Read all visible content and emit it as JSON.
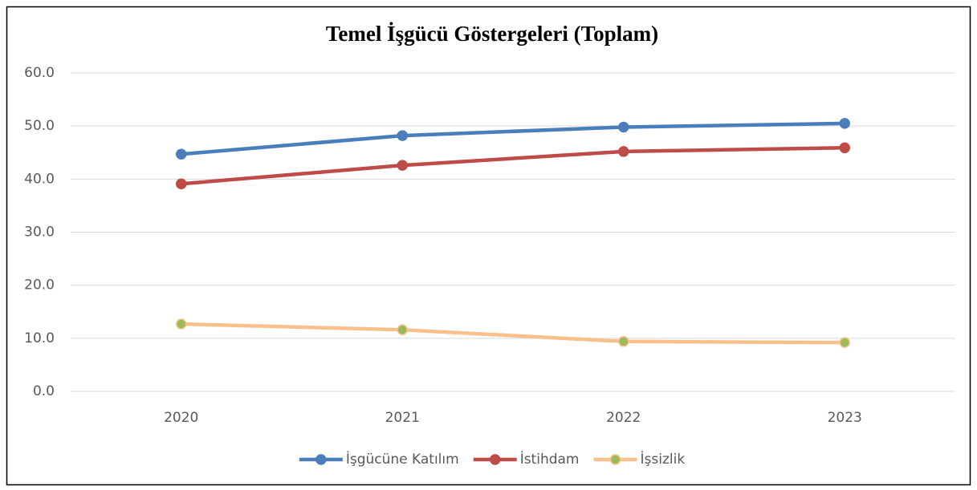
{
  "chart_data": {
    "type": "line",
    "title": "Temel İşgücü Göstergeleri (Toplam)",
    "categories": [
      "2020",
      "2021",
      "2022",
      "2023"
    ],
    "series": [
      {
        "name": "İşgücüne Katılım",
        "color": "#4a7ebb",
        "values": [
          44.7,
          48.2,
          49.8,
          50.5
        ]
      },
      {
        "name": "İstihdam",
        "color": "#be4b48",
        "values": [
          39.1,
          42.6,
          45.2,
          45.9
        ]
      },
      {
        "name": "İşsizlik",
        "color": "#f9c08c",
        "marker_color": "#9bbb59",
        "values": [
          12.7,
          11.6,
          9.4,
          9.2
        ]
      }
    ],
    "ylim": [
      0,
      60
    ],
    "yticks": [
      {
        "value": 0,
        "label": "0.0"
      },
      {
        "value": 10,
        "label": "10.0"
      },
      {
        "value": 20,
        "label": "20.0"
      },
      {
        "value": 30,
        "label": "30.0"
      },
      {
        "value": 40,
        "label": "40.0"
      },
      {
        "value": 50,
        "label": "50.0"
      },
      {
        "value": 60,
        "label": "60.0"
      }
    ],
    "grid": true,
    "legend": "bottom"
  }
}
